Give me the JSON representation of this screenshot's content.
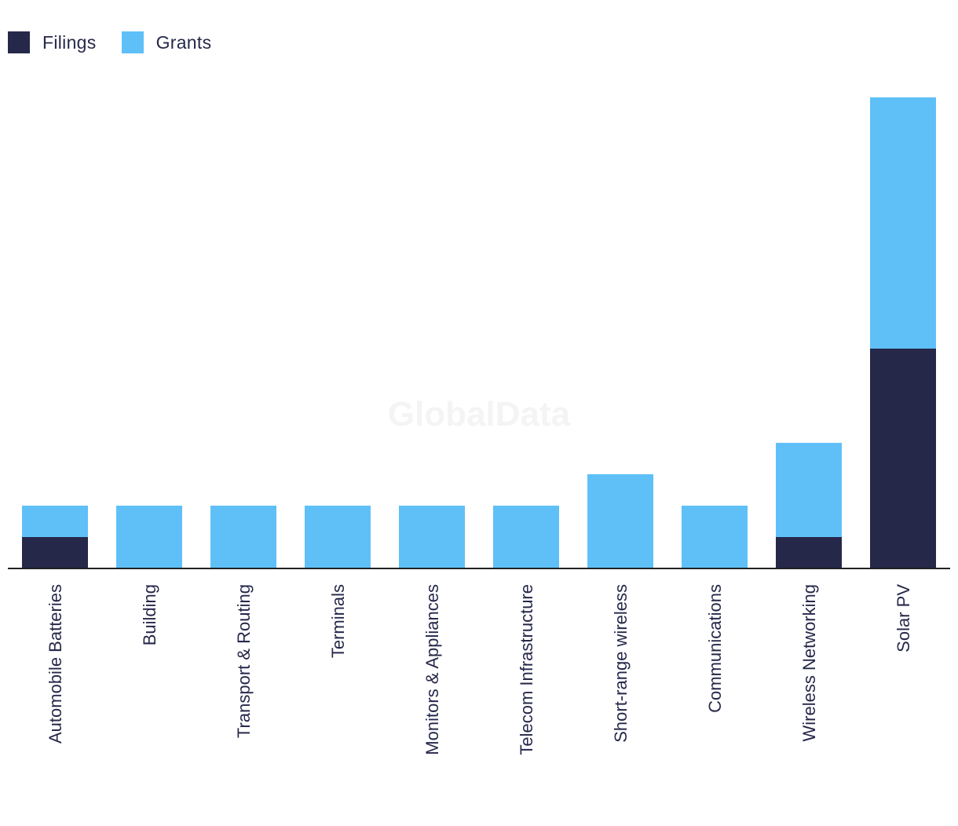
{
  "legend": {
    "series0": "Filings",
    "series1": "Grants"
  },
  "colors": {
    "filings": "#26284a",
    "grants": "#5fc0f8",
    "axis": "#222222"
  },
  "watermark": "GlobalData",
  "chart_data": {
    "type": "bar",
    "stacked": true,
    "categories": [
      "Automobile Batteries",
      "Building",
      "Transport & Routing",
      "Terminals",
      "Monitors & Appliances",
      "Telecom Infrastructure",
      "Short-range wireless",
      "Communications",
      "Wireless Networking",
      "Solar PV"
    ],
    "series": [
      {
        "name": "Filings",
        "values": [
          1,
          0,
          0,
          0,
          0,
          0,
          0,
          0,
          1,
          7
        ]
      },
      {
        "name": "Grants",
        "values": [
          1,
          2,
          2,
          2,
          2,
          2,
          3,
          2,
          3,
          8
        ]
      }
    ],
    "title": "",
    "xlabel": "",
    "ylabel": "",
    "ylim": [
      0,
      15
    ],
    "grid": false,
    "legend_position": "top-left"
  }
}
